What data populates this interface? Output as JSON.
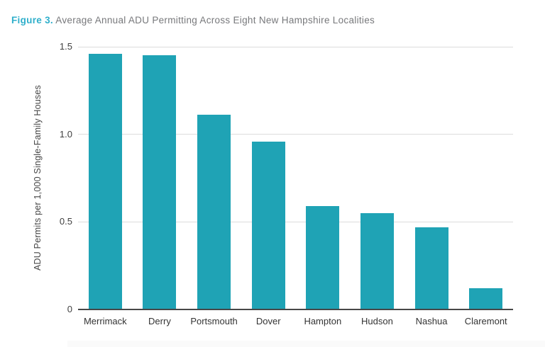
{
  "title": {
    "label": "Figure 3.",
    "text": "Average Annual ADU Permitting Across Eight New Hampshire Localities"
  },
  "colors": {
    "bar": "#1fa3b5",
    "figure_label": "#2fafcb",
    "title_text": "#77787b",
    "tick_label": "#3f3f3f",
    "category_label": "#333333",
    "axis_title": "#454545",
    "gridline": "#dcdcdc",
    "axis_line": "#474747"
  },
  "chart_data": {
    "type": "bar",
    "title": "Figure 3. Average Annual ADU Permitting Across Eight New Hampshire Localities",
    "categories": [
      "Merrimack",
      "Derry",
      "Portsmouth",
      "Dover",
      "Hampton",
      "Hudson",
      "Nashua",
      "Claremont"
    ],
    "values": [
      1.46,
      1.45,
      1.11,
      0.96,
      0.59,
      0.55,
      0.47,
      0.12
    ],
    "xlabel": "",
    "ylabel": "ADU Permits per 1,000 Single-Family Houses",
    "ylim": [
      0,
      1.5
    ],
    "yticks": [
      0,
      0.5,
      1.0,
      1.5
    ],
    "ytick_labels": [
      "0",
      "0.5",
      "1.0",
      "1.5"
    ],
    "grid": true,
    "legend": false,
    "bar_color": "#1fa3b5"
  }
}
